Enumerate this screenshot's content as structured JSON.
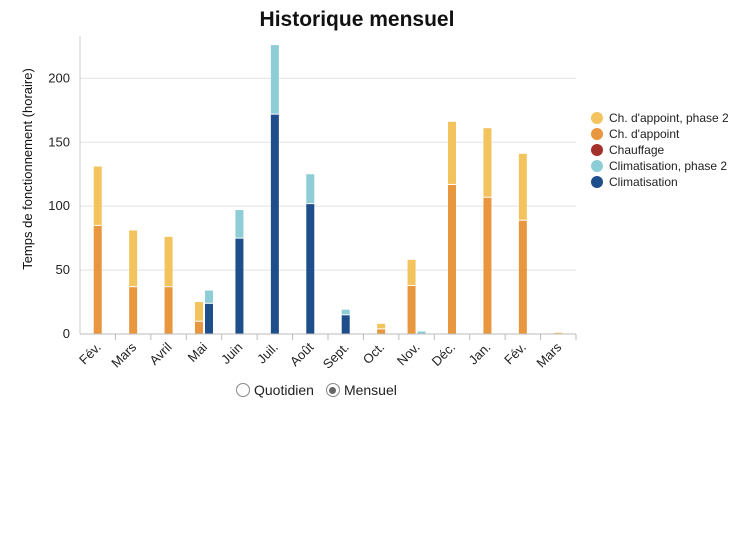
{
  "title": "Historique mensuel",
  "chart_data": {
    "type": "bar",
    "title": "Historique mensuel",
    "xlabel": "",
    "ylabel": "Temps de fonctionnement (horaire)",
    "ylim": [
      0,
      230
    ],
    "yticks": [
      0,
      50,
      100,
      150,
      200
    ],
    "grid": true,
    "legend_position": "right",
    "categories": [
      "Fév.",
      "Mars",
      "Avril",
      "Mai",
      "Juin",
      "Juil.",
      "Août",
      "Sept.",
      "Oct.",
      "Nov.",
      "Déc.",
      "Jan.",
      "Fév.",
      "Mars"
    ],
    "series": [
      {
        "name": "Ch. d'appoint",
        "stack": "heat",
        "color": "#E8973F",
        "values": [
          85,
          37,
          37,
          10,
          0,
          0,
          0,
          0,
          4,
          38,
          117,
          107,
          89,
          0
        ]
      },
      {
        "name": "Ch. d'appoint, phase 2",
        "stack": "heat",
        "color": "#F3C35E",
        "values": [
          46,
          44,
          39,
          15,
          0,
          0,
          0,
          0,
          4,
          20,
          49,
          54,
          52,
          1
        ]
      },
      {
        "name": "Chauffage",
        "stack": "heat",
        "color": "#A3302A",
        "values": [
          0,
          0,
          0,
          0,
          0,
          0,
          0,
          0,
          0,
          0,
          0,
          0,
          0,
          0
        ]
      },
      {
        "name": "Climatisation",
        "stack": "cool",
        "color": "#1F4E8C",
        "values": [
          0,
          0,
          0,
          24,
          75,
          172,
          102,
          15,
          0,
          0,
          0,
          0,
          0,
          0
        ]
      },
      {
        "name": "Climatisation, phase 2",
        "stack": "cool",
        "color": "#8ECDD6",
        "values": [
          0,
          0,
          0,
          10,
          22,
          54,
          23,
          4,
          0,
          2,
          0,
          0,
          0,
          0
        ]
      }
    ],
    "legend": [
      "Ch. d'appoint, phase 2",
      "Ch. d'appoint",
      "Chauffage",
      "Climatisation, phase 2",
      "Climatisation"
    ]
  },
  "view_toggle": {
    "options": [
      {
        "label": "Quotidien",
        "selected": false
      },
      {
        "label": "Mensuel",
        "selected": true
      }
    ]
  }
}
